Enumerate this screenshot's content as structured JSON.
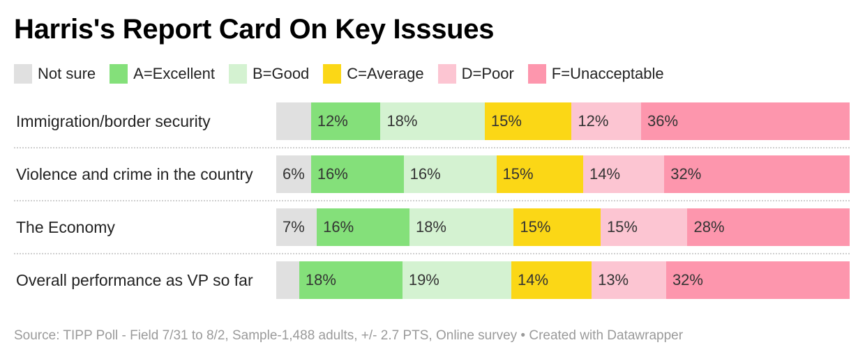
{
  "title": "Harris's Report Card On Key Isssues",
  "source": "Source: TIPP Poll - Field 7/31 to 8/2, Sample-1,488 adults, +/- 2.7 PTS, Online survey • Created with Datawrapper",
  "colors": {
    "not_sure": "#e0e0e0",
    "excellent": "#84e07a",
    "good": "#d4f2d1",
    "average": "#fbd716",
    "poor": "#fcc5d2",
    "unacceptable": "#fd96ad"
  },
  "chart_data": {
    "type": "bar",
    "orientation": "horizontal",
    "stacked": true,
    "title": "Harris's Report Card On Key Isssues",
    "categories": [
      "Immigration/border security",
      "Violence and crime in the country",
      "The Economy",
      "Overall performance as VP so far"
    ],
    "series": [
      {
        "name": "Not sure",
        "key": "not_sure",
        "values": [
          6,
          6,
          7,
          4
        ],
        "labels": [
          "",
          "6%",
          "7%",
          ""
        ]
      },
      {
        "name": "A=Excellent",
        "key": "excellent",
        "values": [
          12,
          16,
          16,
          18
        ],
        "labels": [
          "12%",
          "16%",
          "16%",
          "18%"
        ]
      },
      {
        "name": "B=Good",
        "key": "good",
        "values": [
          18,
          16,
          18,
          19
        ],
        "labels": [
          "18%",
          "16%",
          "18%",
          "19%"
        ]
      },
      {
        "name": "C=Average",
        "key": "average",
        "values": [
          15,
          15,
          15,
          14
        ],
        "labels": [
          "15%",
          "15%",
          "15%",
          "14%"
        ]
      },
      {
        "name": "D=Poor",
        "key": "poor",
        "values": [
          12,
          14,
          15,
          13
        ],
        "labels": [
          "12%",
          "14%",
          "15%",
          "13%"
        ]
      },
      {
        "name": "F=Unacceptable",
        "key": "unacceptable",
        "values": [
          36,
          32,
          28,
          32
        ],
        "labels": [
          "36%",
          "32%",
          "28%",
          "32%"
        ]
      }
    ],
    "legend_position": "top-left",
    "xlim": [
      0,
      100
    ]
  }
}
